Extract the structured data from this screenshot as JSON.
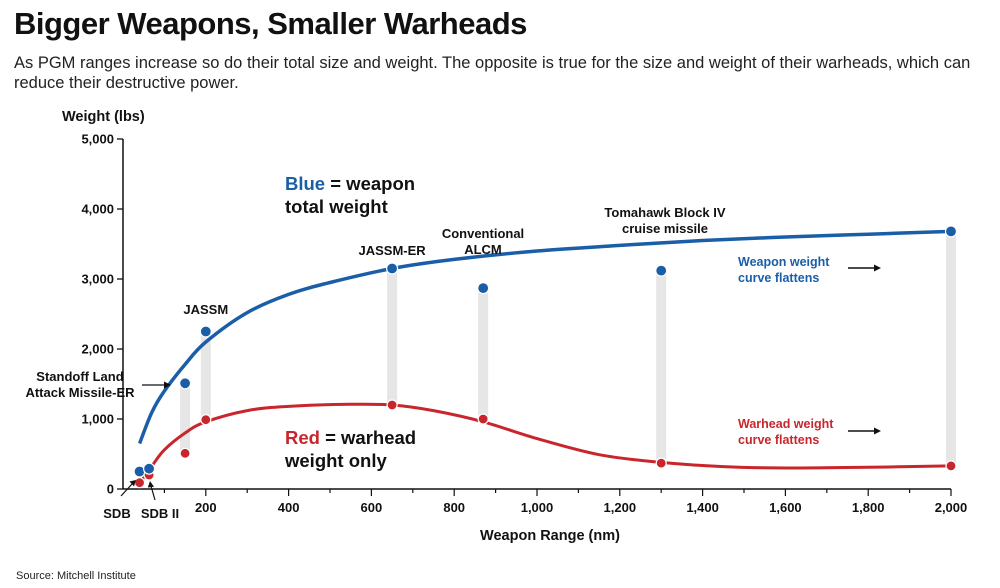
{
  "title": "Bigger Weapons, Smaller Warheads",
  "subtitle": "As PGM ranges increase so do their total size and weight. The opposite is true for the size and weight of their warheads, which can reduce their destructive power.",
  "source": "Source: Mitchell Institute",
  "colors": {
    "weapon": "#1a5ea8",
    "warhead": "#c8262c",
    "connector": "#e6e6e6"
  },
  "chart_data": {
    "type": "scatter",
    "xlabel": "Weapon Range (nm)",
    "ylabel": "Weight (lbs)",
    "xlim": [
      0,
      2000
    ],
    "ylim": [
      0,
      5000
    ],
    "x_ticks": [
      200,
      400,
      600,
      800,
      1000,
      1200,
      1400,
      1600,
      1800,
      2000
    ],
    "x_tick_labels": [
      "200",
      "400",
      "600",
      "800",
      "1,000",
      "1,200",
      "1,400",
      "1,600",
      "1,800",
      "2,000"
    ],
    "y_ticks": [
      0,
      1000,
      2000,
      3000,
      4000,
      5000
    ],
    "y_tick_labels": [
      "0",
      "1,000",
      "2,000",
      "3,000",
      "4,000",
      "5,000"
    ],
    "grid": false,
    "weapons": [
      {
        "name": "SDB",
        "range": 40,
        "weapon_weight": 250,
        "warhead_weight": 90
      },
      {
        "name": "SDB II",
        "range": 63,
        "weapon_weight": 290,
        "warhead_weight": 200
      },
      {
        "name": "Standoff Land Attack Missile-ER",
        "range": 150,
        "weapon_weight": 1510,
        "warhead_weight": 510
      },
      {
        "name": "JASSM",
        "range": 200,
        "weapon_weight": 2250,
        "warhead_weight": 990
      },
      {
        "name": "JASSM-ER",
        "range": 650,
        "weapon_weight": 3150,
        "warhead_weight": 1200
      },
      {
        "name": "Conventional ALCM",
        "range": 870,
        "weapon_weight": 2870,
        "warhead_weight": 1000
      },
      {
        "name": "Tomahawk Block IV cruise missile",
        "range": 1300,
        "weapon_weight": 3120,
        "warhead_weight": 370
      },
      {
        "name": "",
        "range": 2000,
        "weapon_weight": 3680,
        "warhead_weight": 330
      }
    ],
    "weapon_curve": [
      [
        40,
        650
      ],
      [
        70,
        1100
      ],
      [
        100,
        1400
      ],
      [
        150,
        1780
      ],
      [
        200,
        2100
      ],
      [
        300,
        2520
      ],
      [
        400,
        2780
      ],
      [
        500,
        2950
      ],
      [
        650,
        3150
      ],
      [
        800,
        3280
      ],
      [
        1000,
        3400
      ],
      [
        1200,
        3480
      ],
      [
        1400,
        3550
      ],
      [
        1600,
        3600
      ],
      [
        1800,
        3640
      ],
      [
        2000,
        3680
      ]
    ],
    "warhead_curve": [
      [
        40,
        80
      ],
      [
        70,
        330
      ],
      [
        100,
        560
      ],
      [
        150,
        800
      ],
      [
        200,
        960
      ],
      [
        300,
        1120
      ],
      [
        400,
        1180
      ],
      [
        550,
        1210
      ],
      [
        650,
        1200
      ],
      [
        750,
        1120
      ],
      [
        870,
        960
      ],
      [
        1000,
        720
      ],
      [
        1150,
        490
      ],
      [
        1300,
        380
      ],
      [
        1450,
        320
      ],
      [
        1600,
        300
      ],
      [
        1800,
        310
      ],
      [
        2000,
        330
      ]
    ],
    "annotations": {
      "blue_key": "Blue",
      "blue_text1": " = weapon",
      "blue_text2": "total weight",
      "red_key": "Red",
      "red_text1": " = warhead",
      "red_text2": "weight only",
      "weapon_flat1": "Weapon weight",
      "weapon_flat2": "curve flattens",
      "warhead_flat1": "Warhead weight",
      "warhead_flat2": "curve flattens"
    }
  }
}
